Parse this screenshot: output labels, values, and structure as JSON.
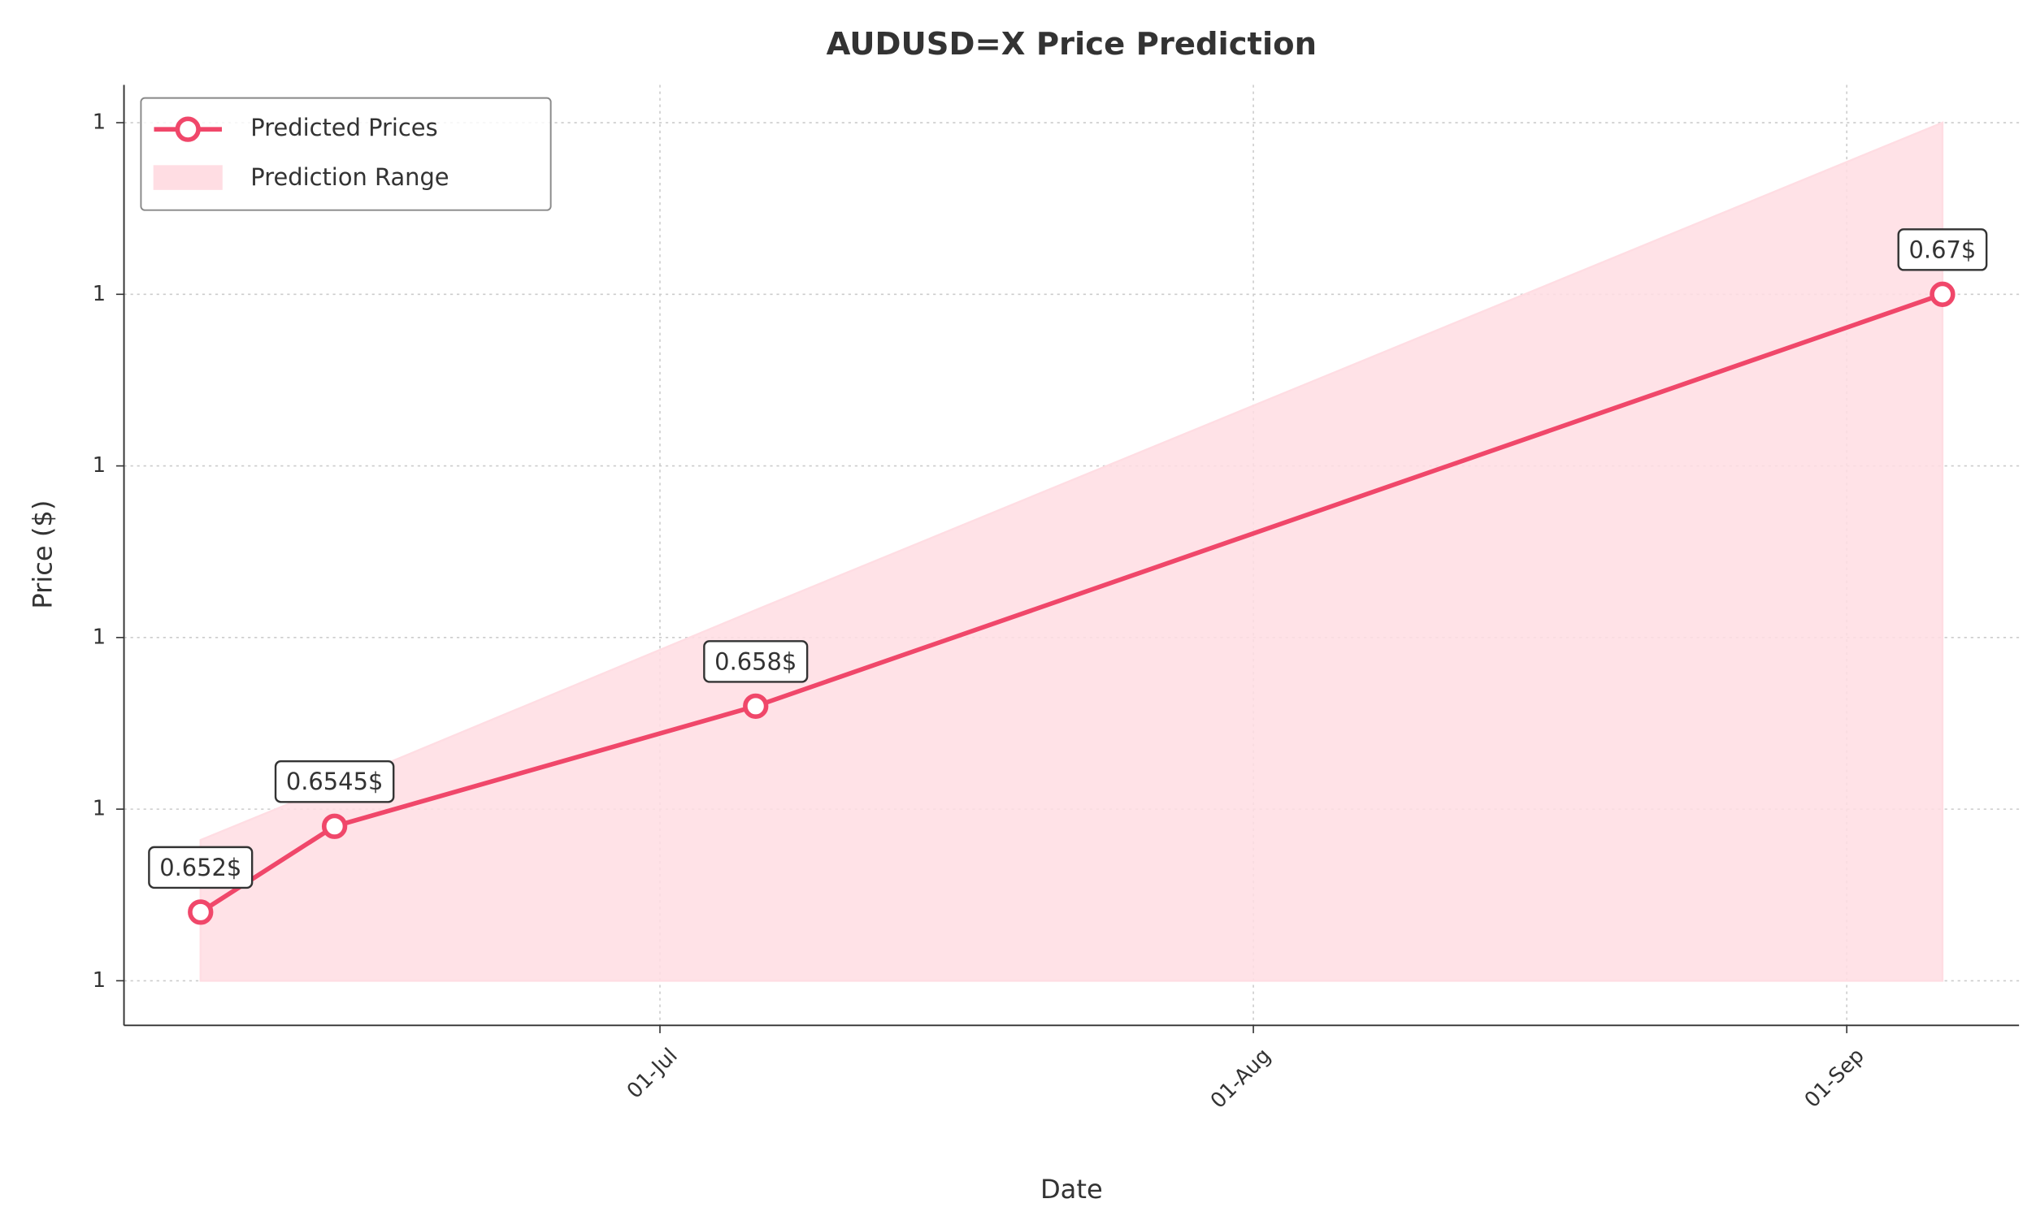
{
  "chart_data": {
    "type": "line",
    "title": "AUDUSD=X Price Prediction",
    "x_label": "Date",
    "y_label": "Price ($)",
    "x": [
      "07-Jun",
      "14-Jun",
      "06-Jul",
      "06-Sep"
    ],
    "series": [
      {
        "name": "Predicted Prices",
        "color": "#f0476a",
        "values": [
          0.652,
          0.6545,
          0.658,
          0.67
        ],
        "value_labels": [
          "0.652$",
          "0.6545$",
          "0.658$",
          "0.67$"
        ]
      }
    ],
    "range": {
      "name": "Prediction Range",
      "color": "#ffdde3",
      "lower": [
        0.65,
        0.65,
        0.65,
        0.65
      ],
      "upper": [
        0.6541,
        0.6557,
        0.6608,
        0.675
      ]
    },
    "xlim": [
      "03-Jun",
      "10-Sep"
    ],
    "xticks": [
      "01-Jul",
      "01-Aug",
      "01-Sep"
    ],
    "ylim": [
      0.6487,
      0.6761
    ],
    "yticks": [
      {
        "value": 0.65,
        "label": "1"
      },
      {
        "value": 0.655,
        "label": "1"
      },
      {
        "value": 0.66,
        "label": "1"
      },
      {
        "value": 0.665,
        "label": "1"
      },
      {
        "value": 0.67,
        "label": "1"
      },
      {
        "value": 0.675,
        "label": "1"
      }
    ],
    "grid": true,
    "legend": "upper left"
  }
}
